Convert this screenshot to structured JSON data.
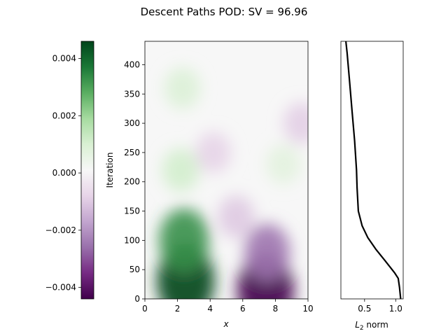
{
  "figure": {
    "title": "Descent Paths POD: SV = 96.96"
  },
  "chart_data": [
    {
      "type": "heatmap",
      "panel": "colorbar",
      "range": [
        -0.0044,
        0.0046
      ],
      "ticks": [
        {
          "value": 0.004,
          "label": "0.004"
        },
        {
          "value": 0.002,
          "label": "0.002"
        },
        {
          "value": 0.0,
          "label": "0.000"
        },
        {
          "value": -0.002,
          "label": "−0.002"
        },
        {
          "value": -0.004,
          "label": "−0.004"
        }
      ],
      "colormap": "PRGn",
      "colors": [
        "#40004b",
        "#762a83",
        "#9970ab",
        "#c2a5cf",
        "#e7d4e8",
        "#f7f7f7",
        "#d9f0d3",
        "#a6dba0",
        "#5aae61",
        "#1b7837",
        "#00441b"
      ]
    },
    {
      "type": "heatmap",
      "panel": "main",
      "xlabel": "x",
      "ylabel": "Iteration",
      "xlim": [
        0,
        10
      ],
      "ylim": [
        0,
        440
      ],
      "xticks": [
        {
          "value": 0,
          "label": "0"
        },
        {
          "value": 2,
          "label": "2"
        },
        {
          "value": 4,
          "label": "4"
        },
        {
          "value": 6,
          "label": "6"
        },
        {
          "value": 8,
          "label": "8"
        },
        {
          "value": 10,
          "label": "10"
        }
      ],
      "yticks": [
        {
          "value": 0,
          "label": "0"
        },
        {
          "value": 50,
          "label": "50"
        },
        {
          "value": 100,
          "label": "100"
        },
        {
          "value": 150,
          "label": "150"
        },
        {
          "value": 200,
          "label": "200"
        },
        {
          "value": 250,
          "label": "250"
        },
        {
          "value": 300,
          "label": "300"
        },
        {
          "value": 350,
          "label": "350"
        },
        {
          "value": 400,
          "label": "400"
        }
      ],
      "features": [
        {
          "x": 2.5,
          "y": 30,
          "value": 0.0046
        },
        {
          "x": 2.4,
          "y": 100,
          "value": 0.0033
        },
        {
          "x": 2.2,
          "y": 220,
          "value": 0.0011
        },
        {
          "x": 2.3,
          "y": 360,
          "value": 0.0009
        },
        {
          "x": 4.2,
          "y": 250,
          "value": -0.0008
        },
        {
          "x": 7.4,
          "y": 15,
          "value": -0.0044
        },
        {
          "x": 7.5,
          "y": 80,
          "value": -0.0025
        },
        {
          "x": 5.6,
          "y": 140,
          "value": -0.001
        },
        {
          "x": 8.5,
          "y": 230,
          "value": 0.0007
        },
        {
          "x": 9.6,
          "y": 300,
          "value": -0.0009
        }
      ]
    },
    {
      "type": "line",
      "panel": "norm",
      "xlabel": "L2 norm",
      "xlim": [
        0.12,
        1.12
      ],
      "ylim": [
        0,
        440
      ],
      "xticks": [
        {
          "value": 0.5,
          "label": "0.5"
        },
        {
          "value": 1.0,
          "label": "1.0"
        }
      ],
      "series": [
        {
          "x": [
            0.2,
            0.22,
            0.26,
            0.3,
            0.34,
            0.37,
            0.38,
            0.4,
            0.46,
            0.55,
            0.68,
            0.83,
            0.98,
            1.04,
            1.06,
            1.08
          ],
          "y": [
            440,
            420,
            370,
            320,
            270,
            220,
            190,
            150,
            125,
            105,
            85,
            65,
            45,
            35,
            20,
            0
          ]
        }
      ]
    }
  ]
}
